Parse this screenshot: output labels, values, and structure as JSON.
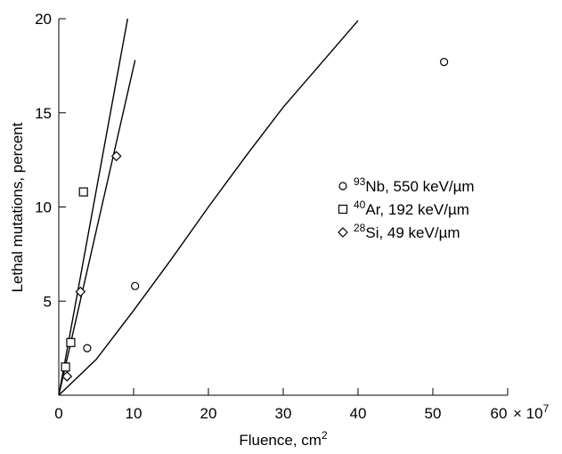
{
  "chart_data": {
    "type": "scatter",
    "title": "",
    "xlabel": "Fluence, cm",
    "xlabel_sup": "2",
    "ylabel": "Lethal mutations, percent",
    "xlim": [
      0,
      60
    ],
    "ylim": [
      0,
      20
    ],
    "x_ticks": [
      {
        "value": 0,
        "label": "0"
      },
      {
        "value": 10,
        "label": "10"
      },
      {
        "value": 20,
        "label": "20"
      },
      {
        "value": 30,
        "label": "30"
      },
      {
        "value": 40,
        "label": "40"
      },
      {
        "value": 50,
        "label": "50"
      },
      {
        "value": 60,
        "label": "60"
      }
    ],
    "x_tick_suffix": "× 10",
    "x_tick_suffix_sup": "7",
    "y_ticks": [
      {
        "value": 5,
        "label": "5"
      },
      {
        "value": 10,
        "label": "10"
      },
      {
        "value": 15,
        "label": "15"
      },
      {
        "value": 20,
        "label": "20"
      }
    ],
    "grid": false,
    "legend_position": "right",
    "series": [
      {
        "name": "93Nb, 550 keV/µm",
        "name_sup": "93",
        "name_main": "Nb, 550 keV/µm",
        "marker": "circle",
        "points": [
          [
            3.8,
            2.5
          ],
          [
            10.2,
            5.8
          ],
          [
            51.5,
            17.7
          ]
        ]
      },
      {
        "name": "40Ar, 192 keV/µm",
        "name_sup": "40",
        "name_main": "Ar, 192 keV/µm",
        "marker": "square",
        "points": [
          [
            0.9,
            1.5
          ],
          [
            1.6,
            2.8
          ],
          [
            3.3,
            10.8
          ]
        ]
      },
      {
        "name": "28Si, 49 keV/µm",
        "name_sup": "28",
        "name_main": "Si, 49 keV/µm",
        "marker": "diamond",
        "points": [
          [
            1.1,
            1.0
          ],
          [
            2.9,
            5.5
          ],
          [
            7.7,
            12.7
          ]
        ]
      }
    ],
    "fit_lines": [
      {
        "points": [
          [
            0,
            0
          ],
          [
            9.2,
            20
          ]
        ]
      },
      {
        "points": [
          [
            0,
            0
          ],
          [
            10.2,
            17.8
          ]
        ]
      },
      {
        "points": [
          [
            0,
            0
          ],
          [
            5,
            1.9
          ],
          [
            10,
            4.5
          ],
          [
            15,
            7.2
          ],
          [
            20,
            10.0
          ],
          [
            25,
            12.7
          ],
          [
            30,
            15.3
          ],
          [
            35,
            17.6
          ],
          [
            40,
            19.9
          ]
        ]
      }
    ]
  }
}
